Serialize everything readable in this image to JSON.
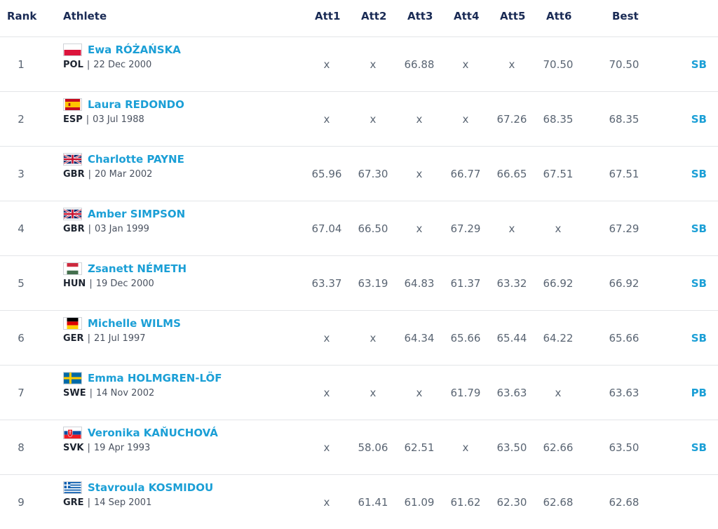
{
  "columns": {
    "rank": "Rank",
    "athlete": "Athlete",
    "att1": "Att1",
    "att2": "Att2",
    "att3": "Att3",
    "att4": "Att4",
    "att5": "Att5",
    "att6": "Att6",
    "best": "Best"
  },
  "rows": [
    {
      "rank": "1",
      "name": "Ewa RÓŻAŃSKA",
      "country": "POL",
      "dob": "22 Dec 2000",
      "flag": "flag-poland-icon",
      "att": [
        "x",
        "x",
        "66.88",
        "x",
        "x",
        "70.50"
      ],
      "best": "70.50",
      "mark": "SB"
    },
    {
      "rank": "2",
      "name": "Laura REDONDO",
      "country": "ESP",
      "dob": "03 Jul 1988",
      "flag": "flag-spain-icon",
      "att": [
        "x",
        "x",
        "x",
        "x",
        "67.26",
        "68.35"
      ],
      "best": "68.35",
      "mark": "SB"
    },
    {
      "rank": "3",
      "name": "Charlotte PAYNE",
      "country": "GBR",
      "dob": "20 Mar 2002",
      "flag": "flag-uk-icon",
      "att": [
        "65.96",
        "67.30",
        "x",
        "66.77",
        "66.65",
        "67.51"
      ],
      "best": "67.51",
      "mark": "SB"
    },
    {
      "rank": "4",
      "name": "Amber SIMPSON",
      "country": "GBR",
      "dob": "03 Jan 1999",
      "flag": "flag-uk-icon",
      "att": [
        "67.04",
        "66.50",
        "x",
        "67.29",
        "x",
        "x"
      ],
      "best": "67.29",
      "mark": "SB"
    },
    {
      "rank": "5",
      "name": "Zsanett NÉMETH",
      "country": "HUN",
      "dob": "19 Dec 2000",
      "flag": "flag-hungary-icon",
      "att": [
        "63.37",
        "63.19",
        "64.83",
        "61.37",
        "63.32",
        "66.92"
      ],
      "best": "66.92",
      "mark": "SB"
    },
    {
      "rank": "6",
      "name": "Michelle WILMS",
      "country": "GER",
      "dob": "21 Jul 1997",
      "flag": "flag-germany-icon",
      "att": [
        "x",
        "x",
        "64.34",
        "65.66",
        "65.44",
        "64.22"
      ],
      "best": "65.66",
      "mark": "SB"
    },
    {
      "rank": "7",
      "name": "Emma HOLMGREN-LÖF",
      "country": "SWE",
      "dob": "14 Nov 2002",
      "flag": "flag-sweden-icon",
      "att": [
        "x",
        "x",
        "x",
        "61.79",
        "63.63",
        "x"
      ],
      "best": "63.63",
      "mark": "PB"
    },
    {
      "rank": "8",
      "name": "Veronika KAŇUCHOVÁ",
      "country": "SVK",
      "dob": "19 Apr 1993",
      "flag": "flag-slovakia-icon",
      "att": [
        "x",
        "58.06",
        "62.51",
        "x",
        "63.50",
        "62.66"
      ],
      "best": "63.50",
      "mark": "SB"
    },
    {
      "rank": "9",
      "name": "Stavroula KOSMIDOU",
      "country": "GRE",
      "dob": "14 Sep 2001",
      "flag": "flag-greece-icon",
      "att": [
        "x",
        "61.41",
        "61.09",
        "61.62",
        "62.30",
        "62.68"
      ],
      "best": "62.68",
      "mark": ""
    }
  ],
  "colors": {
    "accent": "#1b9fd6",
    "header": "#1a2b55",
    "divider": "#e3e5e8"
  }
}
